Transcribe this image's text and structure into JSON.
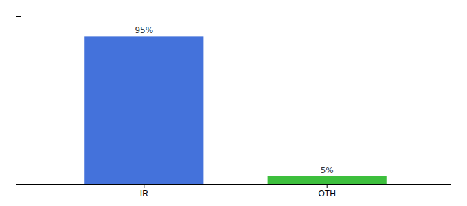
{
  "chart_data": {
    "type": "bar",
    "categories": [
      "IR",
      "OTH"
    ],
    "values": [
      95,
      5
    ],
    "value_labels": [
      "95%",
      "5%"
    ],
    "colors": [
      "#4472db",
      "#3dbf3d"
    ],
    "ylim": [
      0,
      108
    ],
    "yticks": [],
    "grid": false,
    "tick_labels": "x",
    "data_labels": true
  }
}
